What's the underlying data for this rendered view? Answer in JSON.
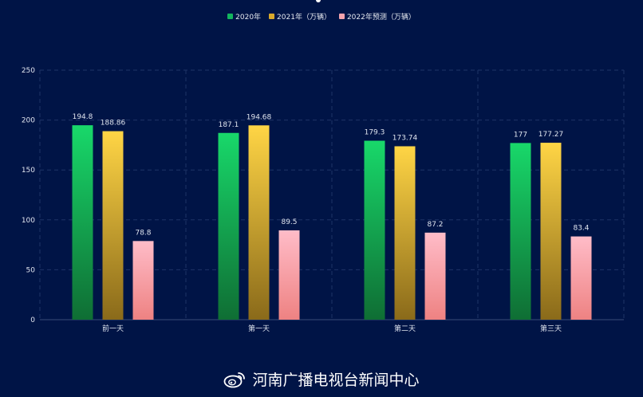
{
  "colors": {
    "background": "#001446",
    "grid": "#1e3366",
    "axis_text": "#dfe4ee",
    "series_gradients": [
      [
        "#18d86a",
        "#0f6e34"
      ],
      [
        "#ffd545",
        "#8a6a1a"
      ],
      [
        "#ffbcc8",
        "#ee8282"
      ]
    ],
    "legend_swatches": [
      "#13b55e",
      "#d9a92c",
      "#f4a3ae"
    ]
  },
  "legend": {
    "items": [
      {
        "label": "2020年"
      },
      {
        "label": "2021年（万辆）"
      },
      {
        "label": "2022年预测（万辆）"
      }
    ]
  },
  "watermark": {
    "icon": "weibo-icon",
    "text": "河南广播电视台新闻中心"
  },
  "chart_data": {
    "type": "bar",
    "categories": [
      "前一天",
      "第一天",
      "第二天",
      "第三天"
    ],
    "series": [
      {
        "name": "2020年",
        "values": [
          194.8,
          187.1,
          179.3,
          177
        ],
        "labels": [
          "194.8",
          "187.1",
          "179.3",
          "177"
        ]
      },
      {
        "name": "2021年（万辆）",
        "values": [
          188.86,
          194.68,
          173.74,
          177.27
        ],
        "labels": [
          "188.86",
          "194.68",
          "173.74",
          "177.27"
        ]
      },
      {
        "name": "2022年预测（万辆）",
        "values": [
          78.8,
          89.5,
          87.2,
          83.4
        ],
        "labels": [
          "78.8",
          "89.5",
          "87.2",
          "83.4"
        ]
      }
    ],
    "ylim": [
      0,
      250
    ],
    "yticks": [
      0,
      50,
      100,
      150,
      200,
      250
    ],
    "grid": true,
    "legend_position": "top-center",
    "title": "",
    "xlabel": "",
    "ylabel": ""
  }
}
